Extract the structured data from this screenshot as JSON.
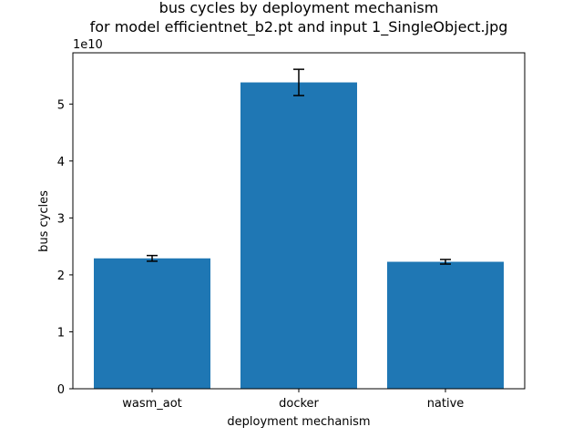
{
  "chart_data": {
    "type": "bar",
    "title_line1": "bus cycles by deployment mechanism",
    "title_line2": "for model efficientnet_b2.pt and input 1_SingleObject.jpg",
    "xlabel": "deployment mechanism",
    "ylabel": "bus cycles",
    "y_offset_label": "1e10",
    "categories": [
      "wasm_aot",
      "docker",
      "native"
    ],
    "values": [
      22900000000.0,
      53800000000.0,
      22300000000.0
    ],
    "errors": [
      500000000.0,
      2300000000.0,
      400000000.0
    ],
    "ylim": [
      0,
      59000000000.0
    ],
    "y_ticks": [
      0,
      10000000000.0,
      20000000000.0,
      30000000000.0,
      40000000000.0,
      50000000000.0
    ],
    "y_tick_labels": [
      "0",
      "1",
      "2",
      "3",
      "4",
      "5"
    ],
    "bar_color": "#1f77b4",
    "grid": false,
    "legend": false
  }
}
